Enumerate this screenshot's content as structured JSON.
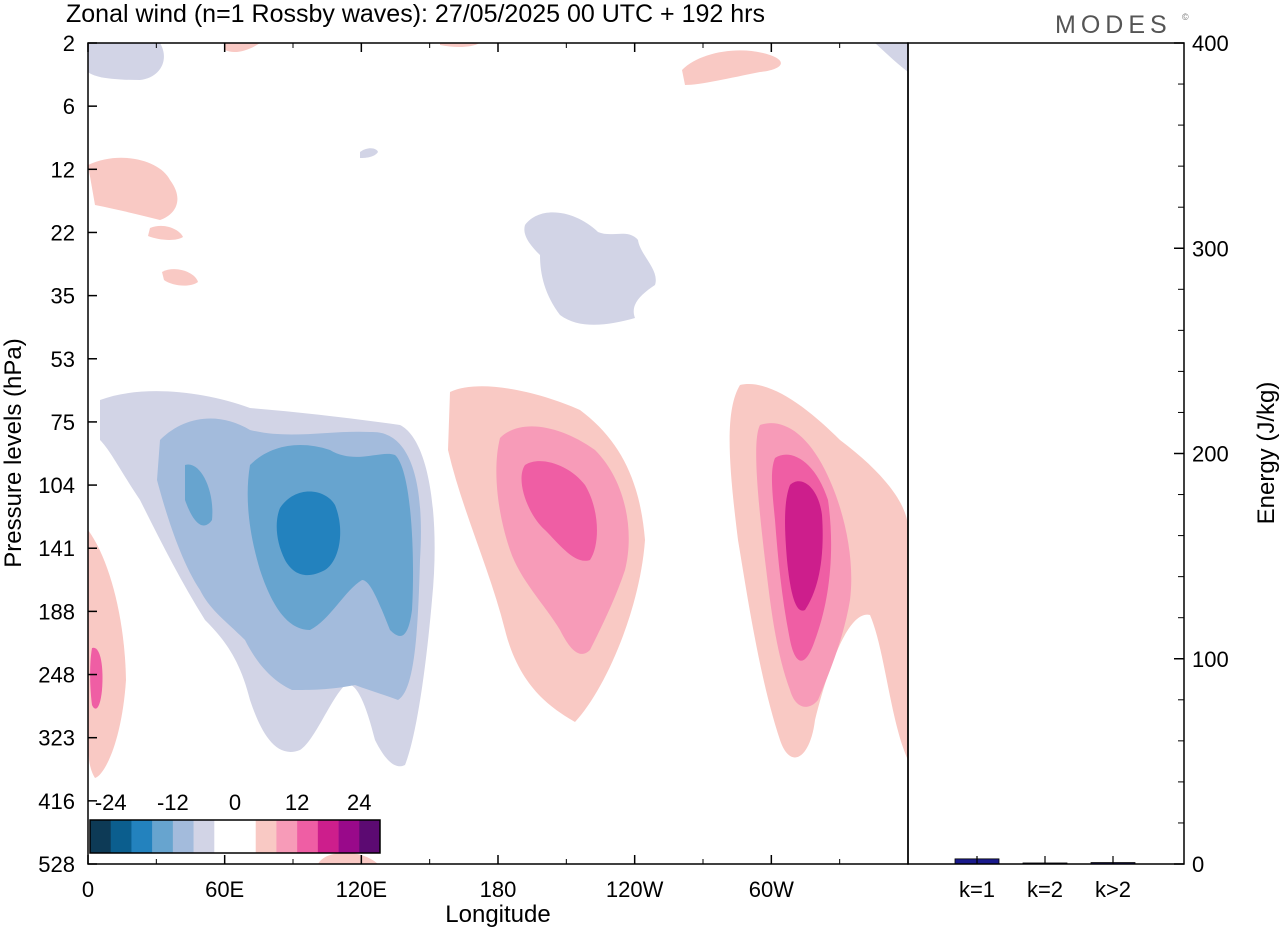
{
  "title": "Zonal wind (n=1 Rossby waves):  27/05/2025  00 UTC  + 192 hrs",
  "brand": "MODES",
  "brand_mark": "©",
  "chart_data": [
    {
      "type": "heatmap",
      "xlabel": "Longitude",
      "ylabel": "Pressure levels (hPa)",
      "x_ticks": [
        "0",
        "60E",
        "120E",
        "180",
        "120W",
        "60W"
      ],
      "x_tick_degrees": [
        0,
        60,
        120,
        180,
        240,
        300
      ],
      "xlim": [
        0,
        360
      ],
      "y_ticks": [
        "2",
        "6",
        "12",
        "22",
        "35",
        "53",
        "75",
        "104",
        "141",
        "188",
        "248",
        "323",
        "416",
        "528"
      ],
      "colorbar": {
        "tick_labels": [
          "-24",
          "-12",
          "0",
          "12",
          "24"
        ],
        "colors": [
          "#0d3a56",
          "#0b5e8e",
          "#2382be",
          "#67a4cf",
          "#a3bbdc",
          "#d2d4e6",
          "#ffffff",
          "#ffffff",
          "#f9c9c4",
          "#f79bb8",
          "#ef5ea4",
          "#cd1e8c",
          "#99098a",
          "#5c0a72"
        ]
      },
      "features": [
        {
          "center_lon": 85,
          "center_level": "141",
          "sign": "negative",
          "peak_magnitude": 12
        },
        {
          "center_lon": 205,
          "center_level": "104",
          "sign": "positive",
          "peak_magnitude": 12
        },
        {
          "center_lon": 310,
          "center_level": "141",
          "sign": "positive",
          "peak_magnitude": 16
        }
      ]
    },
    {
      "type": "bar",
      "categories": [
        "k=1",
        "k=2",
        "k>2"
      ],
      "values": [
        2.5,
        0.5,
        0.7
      ],
      "ylabel": "Energy (J/kg)",
      "ylim": [
        0,
        400
      ],
      "y_ticks": [
        "0",
        "100",
        "200",
        "300",
        "400"
      ],
      "bar_color": "#1a1a8c"
    }
  ]
}
